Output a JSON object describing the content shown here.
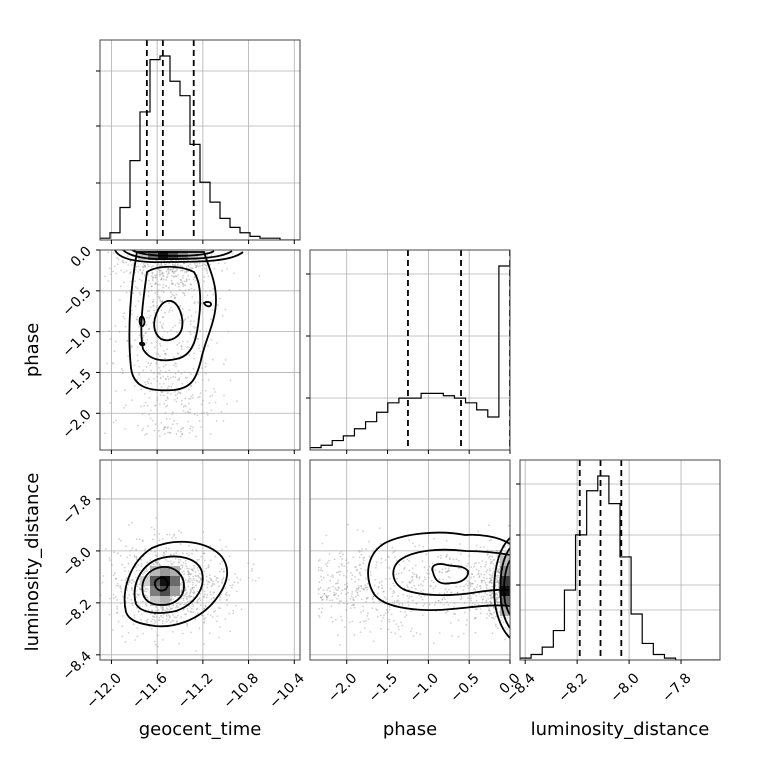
{
  "chart_data": {
    "type": "corner",
    "parameters": [
      "geocent_time",
      "phase",
      "luminosity_distance"
    ],
    "axes": {
      "geocent_time": {
        "label": "geocent_time",
        "range": [
          -12.1,
          -10.35
        ],
        "ticks": [
          -12.0,
          -11.6,
          -11.2,
          -10.8,
          -10.4
        ],
        "tick_labels": [
          "−12.0",
          "−11.6",
          "−11.2",
          "−10.8",
          "−10.4"
        ]
      },
      "phase": {
        "label": "phase",
        "range": [
          -2.45,
          0.0
        ],
        "ticks": [
          -2.0,
          -1.5,
          -1.0,
          -0.5,
          0.0
        ],
        "tick_labels": [
          "−2.0",
          "−1.5",
          "−1.0",
          "−0.5",
          "0.0"
        ]
      },
      "luminosity_distance": {
        "label": "luminosity_distance",
        "range": [
          -8.42,
          -7.65
        ],
        "ticks": [
          -8.4,
          -8.2,
          -8.0,
          -7.8
        ],
        "tick_labels": [
          "−8.4",
          "−8.2",
          "−8.0",
          "−7.8"
        ]
      }
    },
    "histograms": {
      "geocent_time": {
        "bin_edges_range": [
          -12.1,
          -10.35
        ],
        "counts": [
          1,
          4,
          18,
          44,
          71,
          100,
          102,
          88,
          80,
          53,
          32,
          21,
          12,
          7,
          4,
          2,
          1,
          1,
          0,
          0
        ],
        "quantiles": [
          -11.69,
          -11.55,
          -11.28
        ]
      },
      "phase": {
        "bin_edges_range": [
          -2.45,
          0.0
        ],
        "counts": [
          1,
          2,
          4,
          6,
          9,
          12,
          16,
          20,
          22,
          22,
          24,
          24,
          23,
          22,
          20,
          17,
          14,
          78
        ],
        "quantiles": [
          -1.25,
          -0.6,
          0.0
        ]
      },
      "luminosity_distance": {
        "bin_edges_range": [
          -8.42,
          -7.65
        ],
        "counts": [
          1,
          3,
          7,
          16,
          38,
          68,
          92,
          100,
          85,
          56,
          25,
          9,
          3,
          1,
          0,
          0,
          0,
          0
        ],
        "quantiles": [
          -8.19,
          -8.11,
          -8.03
        ]
      }
    },
    "joint": {
      "phase_vs_geocent_time": {
        "center": [
          -11.55,
          -0.9
        ],
        "hotspot": [
          -11.55,
          -0.03
        ]
      },
      "luminosity_distance_vs_geocent_time": {
        "center": [
          -11.53,
          -8.11
        ]
      },
      "luminosity_distance_vs_phase": {
        "center": [
          -0.95,
          -8.11
        ],
        "edge_peak": [
          0.0,
          -8.11
        ]
      }
    },
    "grid": true
  }
}
